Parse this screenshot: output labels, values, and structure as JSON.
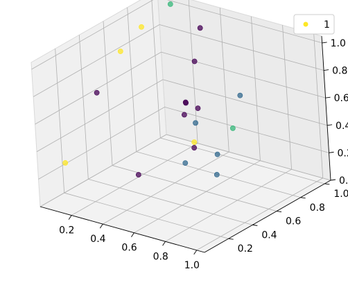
{
  "chart_data": {
    "type": "scatter",
    "projection": "3d",
    "title": "",
    "xlabel": "",
    "ylabel": "",
    "zlabel": "",
    "xlim": [
      0.0,
      1.05
    ],
    "ylim": [
      0.0,
      1.05
    ],
    "zlim": [
      0.0,
      1.05
    ],
    "xticks": [
      0.2,
      0.4,
      0.6,
      0.8,
      1.0
    ],
    "yticks": [
      0.2,
      0.4,
      0.6,
      0.8,
      1.0
    ],
    "zticks": [
      0.0,
      0.2,
      0.4,
      0.6,
      0.8,
      1.0
    ],
    "xtick_labels": [
      "0.2",
      "0.4",
      "0.6",
      "0.8",
      "1.0"
    ],
    "ytick_labels": [
      "0.2",
      "0.4",
      "0.6",
      "0.8",
      "1.0"
    ],
    "ztick_labels": [
      "0.0",
      "0.2",
      "0.4",
      "0.6",
      "0.8",
      "1.0"
    ],
    "grid": true,
    "colormap": "viridis",
    "legend": {
      "placement": "top-right",
      "entries": [
        {
          "label": "1",
          "color": "#fde725"
        }
      ]
    },
    "points": [
      {
        "x": 0.1,
        "y": 0.1,
        "z": 0.3,
        "color": "#fde725"
      },
      {
        "x": 0.45,
        "y": 0.25,
        "z": 0.25,
        "color": "#440154"
      },
      {
        "x": 0.05,
        "y": 0.45,
        "z": 0.62,
        "color": "#440154"
      },
      {
        "x": 0.14,
        "y": 0.55,
        "z": 0.9,
        "color": "#fde725"
      },
      {
        "x": 0.1,
        "y": 0.78,
        "z": 0.95,
        "color": "#fde725"
      },
      {
        "x": 0.16,
        "y": 0.95,
        "z": 1.05,
        "color": "#35b779"
      },
      {
        "x": 0.36,
        "y": 0.93,
        "z": 0.95,
        "color": "#440154"
      },
      {
        "x": 0.48,
        "y": 0.72,
        "z": 0.85,
        "color": "#440154"
      },
      {
        "x": 0.52,
        "y": 0.58,
        "z": 0.63,
        "color": "#440154"
      },
      {
        "x": 0.58,
        "y": 0.6,
        "z": 0.6,
        "color": "#440154"
      },
      {
        "x": 0.57,
        "y": 0.5,
        "z": 0.6,
        "color": "#440154"
      },
      {
        "x": 0.3,
        "y": 0.85,
        "z": 0.43,
        "color": "#440154"
      },
      {
        "x": 0.54,
        "y": 0.6,
        "z": 0.3,
        "color": "#440154"
      },
      {
        "x": 0.68,
        "y": 0.45,
        "z": 0.6,
        "color": "#31688e"
      },
      {
        "x": 0.9,
        "y": 0.55,
        "z": 0.82,
        "color": "#31688e"
      },
      {
        "x": 0.88,
        "y": 0.5,
        "z": 0.6,
        "color": "#35b779"
      },
      {
        "x": 0.68,
        "y": 0.43,
        "z": 0.47,
        "color": "#fde725"
      },
      {
        "x": 0.67,
        "y": 0.36,
        "z": 0.35,
        "color": "#31688e"
      },
      {
        "x": 0.85,
        "y": 0.4,
        "z": 0.45,
        "color": "#31688e"
      },
      {
        "x": 1.0,
        "y": 0.2,
        "z": 0.45,
        "color": "#31688e"
      }
    ]
  }
}
